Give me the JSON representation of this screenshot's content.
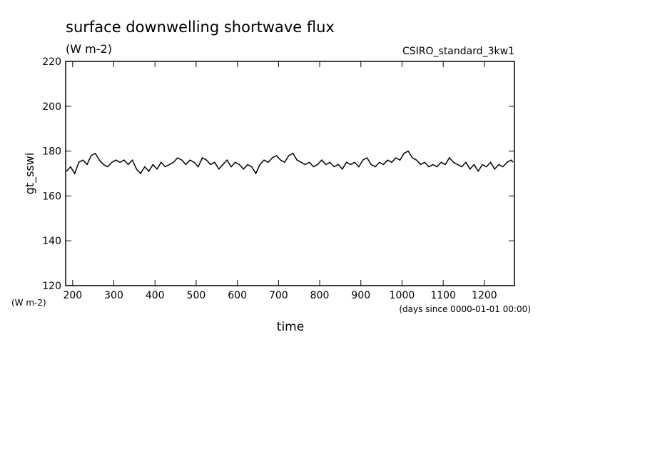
{
  "chart_data": {
    "type": "line",
    "title": "surface downwelling shortwave flux",
    "subtitle": "(W m-2)",
    "annotation": "CSIRO_standard_3kw1",
    "ylabel": "gt_sswi",
    "yunits": "(W m-2)",
    "xlabel": "time",
    "xunits": "(days since 0000-01-01 00:00)",
    "color": "#000000",
    "xlim": [
      183,
      1273
    ],
    "ylim": [
      120,
      220
    ],
    "xticks": [
      200,
      300,
      400,
      500,
      600,
      700,
      800,
      900,
      1000,
      1100,
      1200
    ],
    "yticks": [
      120,
      140,
      160,
      180,
      200,
      220
    ],
    "x": [
      185,
      195,
      205,
      215,
      225,
      235,
      245,
      255,
      265,
      275,
      285,
      295,
      305,
      315,
      325,
      335,
      345,
      355,
      365,
      375,
      385,
      395,
      405,
      415,
      425,
      435,
      445,
      455,
      465,
      475,
      485,
      495,
      505,
      515,
      525,
      535,
      545,
      555,
      565,
      575,
      585,
      595,
      605,
      615,
      625,
      635,
      645,
      655,
      665,
      675,
      685,
      695,
      705,
      715,
      725,
      735,
      745,
      755,
      765,
      775,
      785,
      795,
      805,
      815,
      825,
      835,
      845,
      855,
      865,
      875,
      885,
      895,
      905,
      915,
      925,
      935,
      945,
      955,
      965,
      975,
      985,
      995,
      1005,
      1015,
      1025,
      1035,
      1045,
      1055,
      1065,
      1075,
      1085,
      1095,
      1105,
      1115,
      1125,
      1135,
      1145,
      1155,
      1165,
      1175,
      1185,
      1195,
      1205,
      1215,
      1225,
      1235,
      1245,
      1255,
      1265,
      1270
    ],
    "values": [
      171,
      173,
      170,
      175,
      176,
      174,
      178,
      179,
      176,
      174,
      173,
      175,
      176,
      175,
      176,
      174,
      176,
      172,
      170,
      173,
      171,
      174,
      172,
      175,
      173,
      174,
      175,
      177,
      176,
      174,
      176,
      175,
      173,
      177,
      176,
      174,
      175,
      172,
      174,
      176,
      173,
      175,
      174,
      172,
      174,
      173,
      170,
      174,
      176,
      175,
      177,
      178,
      176,
      175,
      178,
      179,
      176,
      175,
      174,
      175,
      173,
      174,
      176,
      174,
      175,
      173,
      174,
      172,
      175,
      174,
      175,
      173,
      176,
      177,
      174,
      173,
      175,
      174,
      176,
      175,
      177,
      176,
      179,
      180,
      177,
      176,
      174,
      175,
      173,
      174,
      173,
      175,
      174,
      177,
      175,
      174,
      173,
      175,
      172,
      174,
      171,
      174,
      173,
      175,
      172,
      174,
      173,
      175,
      176,
      175
    ]
  }
}
